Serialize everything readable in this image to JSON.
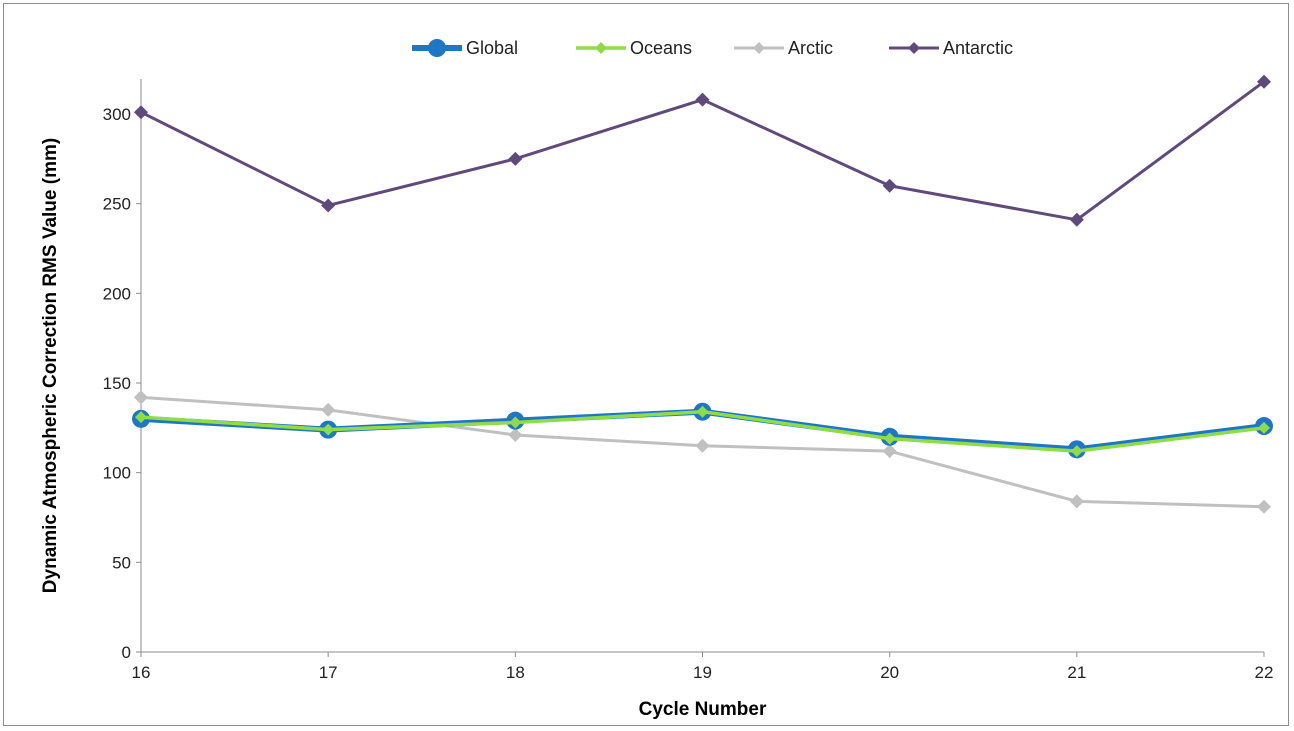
{
  "chart_data": {
    "type": "line",
    "title": "",
    "xlabel": "Cycle Number",
    "ylabel": "Dynamic Atmospheric Correction RMS Value (mm)",
    "x": [
      16,
      17,
      18,
      19,
      20,
      21,
      22
    ],
    "ylim": [
      0,
      300
    ],
    "yticks": [
      0,
      50,
      100,
      150,
      200,
      250,
      300
    ],
    "grid": false,
    "legend_position": "top",
    "series": [
      {
        "name": "Global",
        "color": "#1f77c4",
        "values": [
          130,
          124,
          129,
          134,
          120,
          113,
          126
        ]
      },
      {
        "name": "Oceans",
        "color": "#8fdc4a",
        "values": [
          131,
          124,
          128,
          134,
          119,
          112,
          125
        ]
      },
      {
        "name": "Arctic",
        "color": "#c0c0c0",
        "values": [
          142,
          135,
          121,
          115,
          112,
          84,
          81
        ]
      },
      {
        "name": "Antarctic",
        "color": "#604a7b",
        "values": [
          301,
          249,
          275,
          308,
          260,
          241,
          318
        ]
      }
    ]
  }
}
